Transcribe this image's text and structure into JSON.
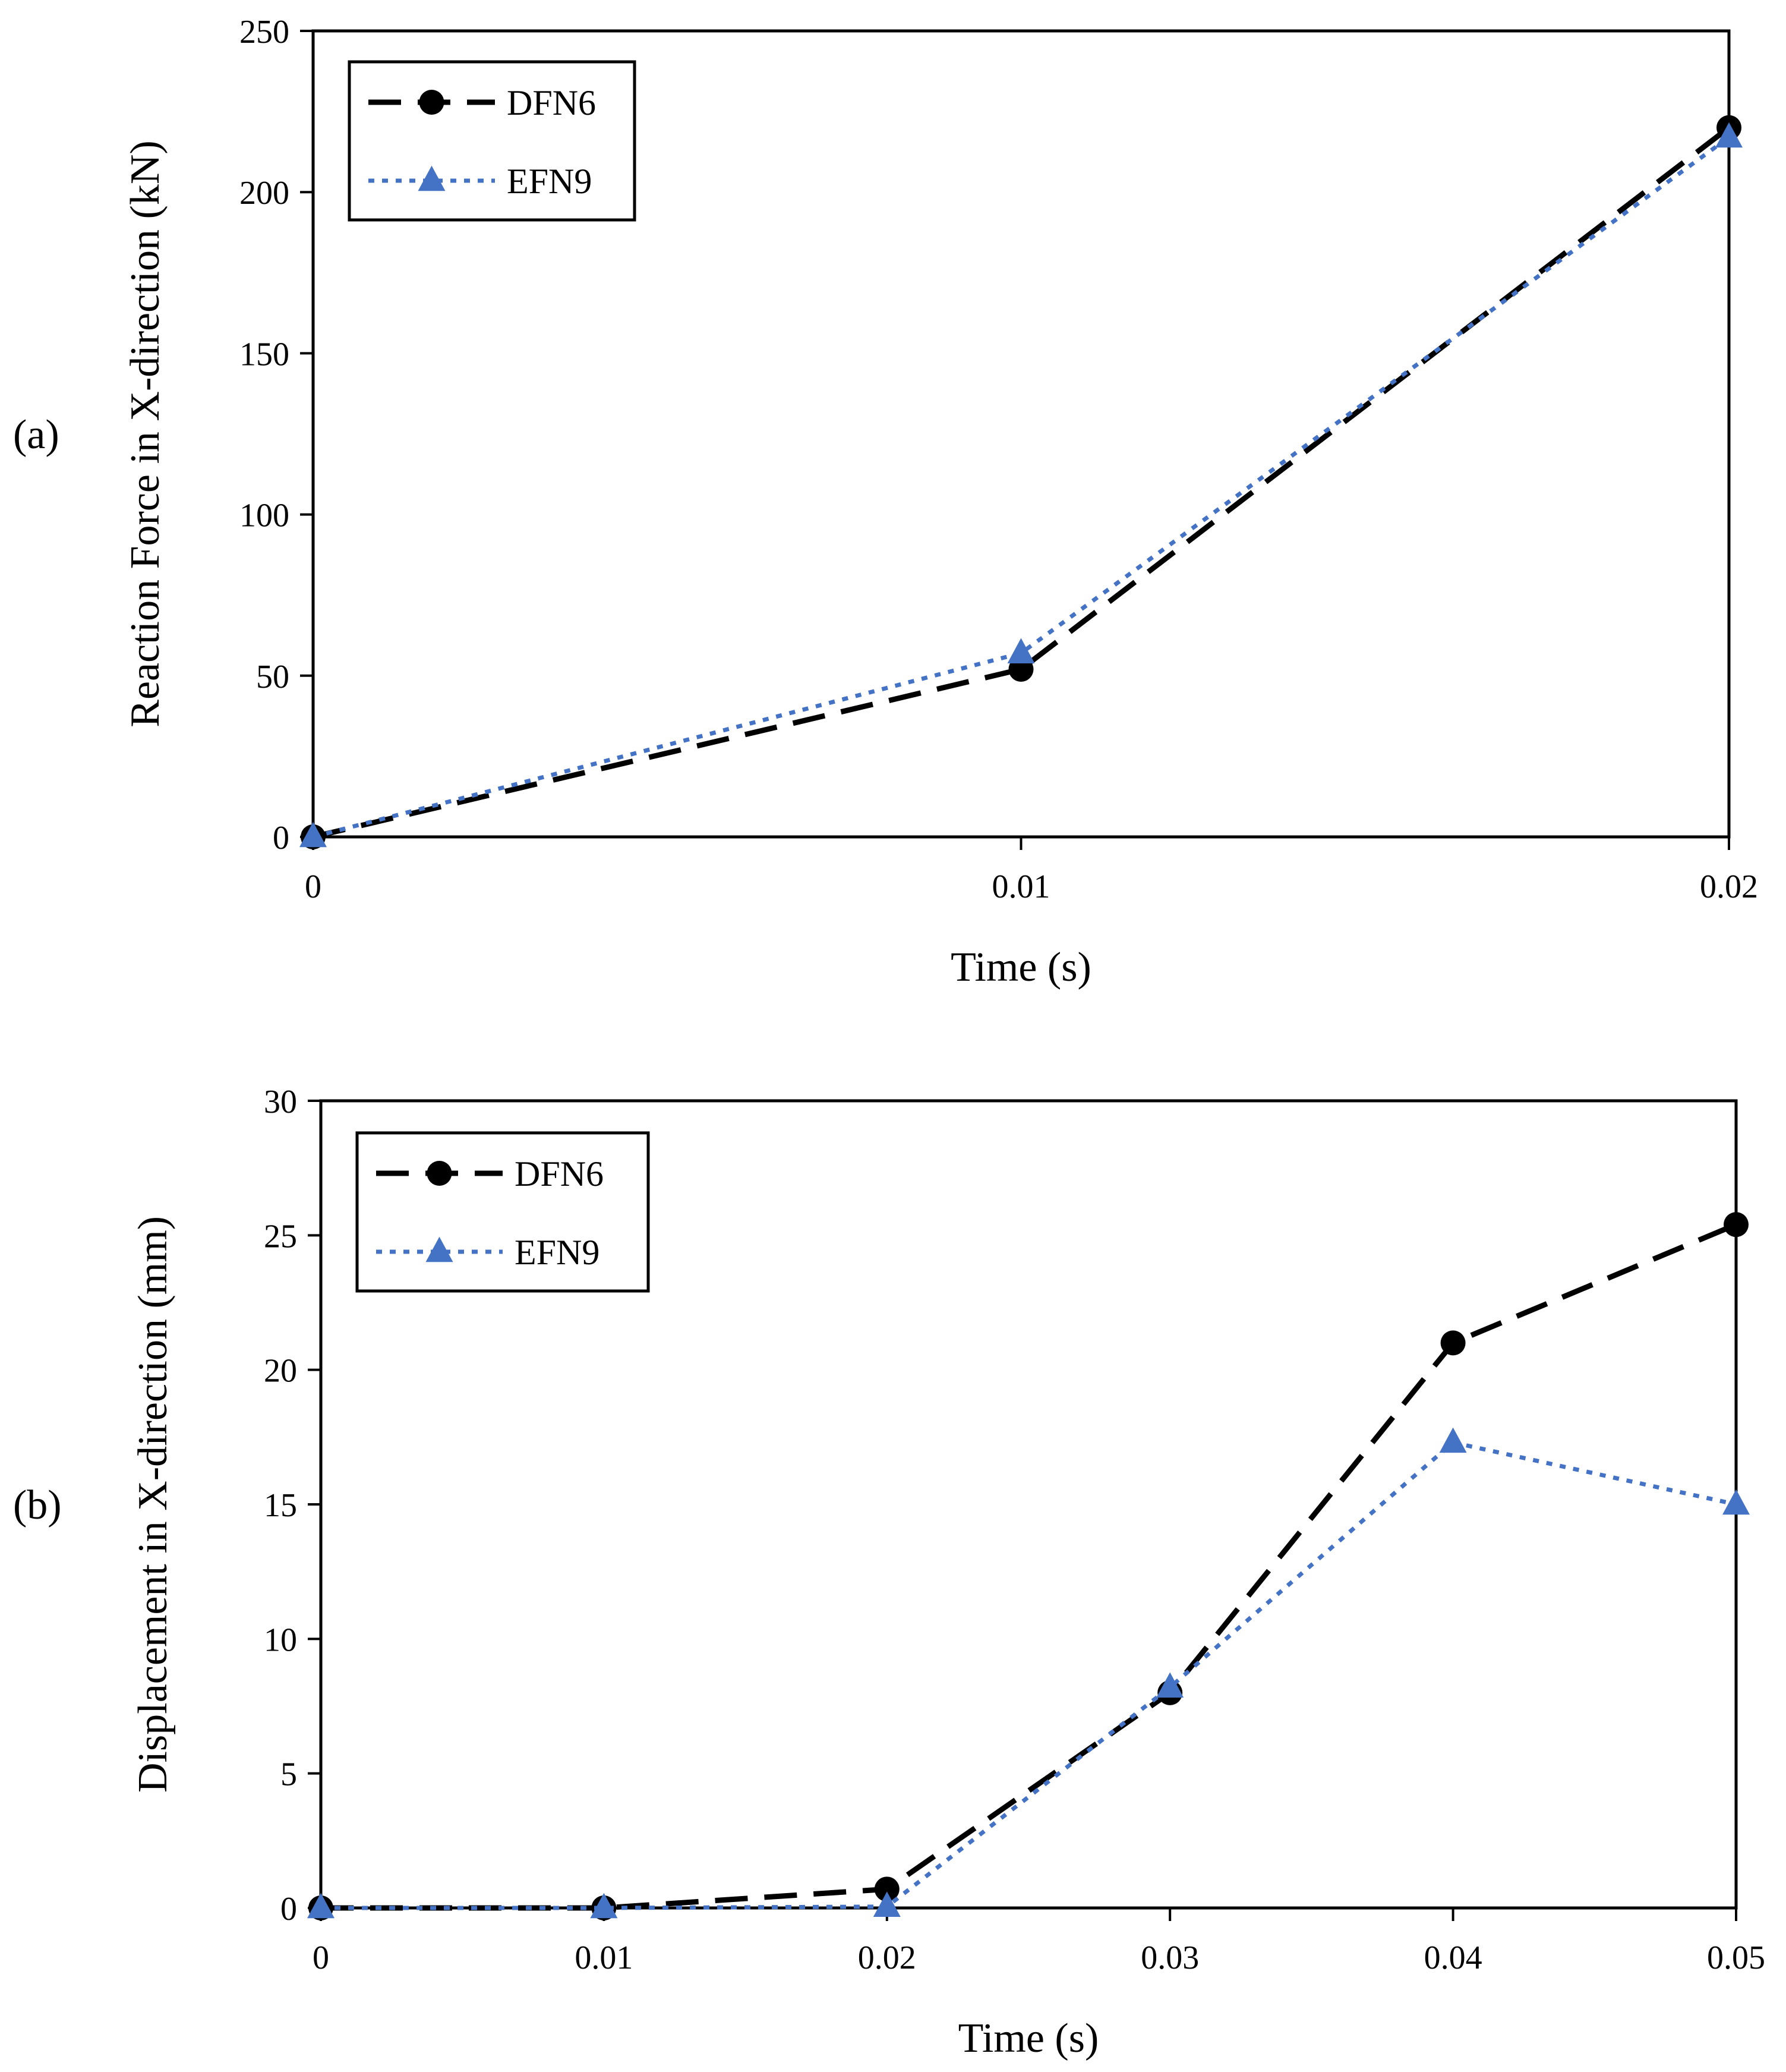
{
  "chart_data": [
    {
      "type": "line",
      "panel_label": "(a)",
      "title": "",
      "xlabel": "Time (s)",
      "ylabel": "Reaction Force in X-direction (kN)",
      "xlim": [
        0,
        0.02
      ],
      "ylim": [
        0,
        250
      ],
      "xticks": [
        0,
        0.01,
        0.02
      ],
      "xtick_labels": [
        "0",
        "0.01",
        "0.02"
      ],
      "yticks": [
        0,
        50,
        100,
        150,
        200,
        250
      ],
      "ytick_labels": [
        "0",
        "50",
        "100",
        "150",
        "200",
        "250"
      ],
      "grid": false,
      "legend_position": "top-left",
      "series": [
        {
          "name": "DFN6",
          "x": [
            0,
            0.01,
            0.02
          ],
          "y": [
            0,
            52,
            220
          ],
          "color": "#000000",
          "line": "dashed",
          "marker": "circle"
        },
        {
          "name": "EFN9",
          "x": [
            0,
            0.01,
            0.02
          ],
          "y": [
            0,
            57,
            217
          ],
          "color": "#4472C4",
          "line": "dotted",
          "marker": "triangle"
        }
      ]
    },
    {
      "type": "line",
      "panel_label": "(b)",
      "title": "",
      "xlabel": "Time (s)",
      "ylabel": "Displacement  in X-direction (mm)",
      "xlim": [
        0,
        0.05
      ],
      "ylim": [
        0,
        30
      ],
      "xticks": [
        0,
        0.01,
        0.02,
        0.03,
        0.04,
        0.05
      ],
      "xtick_labels": [
        "0",
        "0.01",
        "0.02",
        "0.03",
        "0.04",
        "0.05"
      ],
      "yticks": [
        0,
        5,
        10,
        15,
        20,
        25,
        30
      ],
      "ytick_labels": [
        "0",
        "5",
        "10",
        "15",
        "20",
        "25",
        "30"
      ],
      "grid": false,
      "legend_position": "top-left",
      "series": [
        {
          "name": "DFN6",
          "x": [
            0,
            0.01,
            0.02,
            0.03,
            0.04,
            0.05
          ],
          "y": [
            0,
            0,
            0.7,
            8.0,
            21.0,
            25.4
          ],
          "color": "#000000",
          "line": "dashed",
          "marker": "circle"
        },
        {
          "name": "EFN9",
          "x": [
            0,
            0.01,
            0.02,
            0.03,
            0.04,
            0.05
          ],
          "y": [
            0,
            0,
            0.05,
            8.2,
            17.3,
            15.0
          ],
          "color": "#4472C4",
          "line": "dotted",
          "marker": "triangle"
        }
      ]
    }
  ]
}
